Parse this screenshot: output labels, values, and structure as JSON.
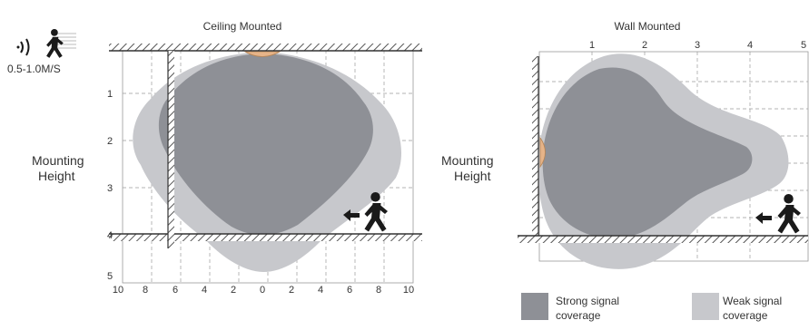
{
  "speed_label": "0.5-1.0M/S",
  "ceiling": {
    "title": "Ceiling Mounted",
    "mounting_label": [
      "Mounting",
      "Height"
    ],
    "y_ticks": [
      "1",
      "2",
      "3",
      "4",
      "5"
    ],
    "x_ticks": [
      "10",
      "8",
      "6",
      "4",
      "2",
      "0",
      "2",
      "4",
      "6",
      "8",
      "10"
    ]
  },
  "wall": {
    "title": "Wall Mounted",
    "mounting_label": [
      "Mounting",
      "Height"
    ],
    "x_ticks": [
      "1",
      "2",
      "3",
      "4",
      "5"
    ]
  },
  "legend": {
    "strong": [
      "Strong signal",
      "coverage"
    ],
    "weak": [
      "Weak signal",
      "coverage"
    ]
  },
  "colors": {
    "strong": "#8e9096",
    "weak": "#c7c8cc",
    "sensor": "#e6b489",
    "hatch": "#555555",
    "icon": "#1a1a1a"
  },
  "icons": [
    "motion-waves-icon",
    "walking-person-icon",
    "arrow-left-icon"
  ]
}
